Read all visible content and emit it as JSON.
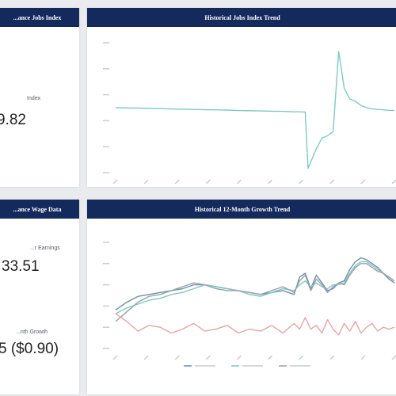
{
  "colors": {
    "header_bg": "#142a5c",
    "page_bg": "#e9ebee",
    "teal": "#7fc9c4",
    "blue": "#6f8faa",
    "gray": "#9aa0a8",
    "red": "#e3a6a6"
  },
  "panels": {
    "index_kpi": {
      "title": "...ance Jobs Index",
      "label": "Index",
      "value": "9.82"
    },
    "jobs_trend": {
      "title": "Historical Jobs Index Trend"
    },
    "wage_kpi": {
      "title": "...ance Wage Data",
      "earnings_label": "...r Earnings",
      "earnings_value": "33.51",
      "growth_label": "...nth Growth",
      "growth_value": "5 ($0.90)"
    },
    "growth_trend": {
      "title": "Historical 12-Month Growth Trend"
    }
  },
  "chart_data": [
    {
      "type": "line",
      "title": "Historical Jobs Index Trend",
      "x": [
        0,
        4,
        8,
        12,
        16,
        20,
        24,
        28,
        32,
        36,
        40,
        44,
        48,
        52,
        56,
        60,
        64,
        66,
        68,
        69,
        70,
        72,
        74,
        76,
        78,
        80,
        82,
        84,
        86,
        88,
        90,
        92,
        94,
        96,
        98,
        100
      ],
      "series": [
        {
          "values": [
            100,
            99.9,
            99.8,
            99.7,
            99.6,
            99.4,
            99.3,
            99.2,
            99.1,
            99.0,
            98.9,
            98.7,
            98.6,
            98.5,
            98.4,
            98.3,
            98.1,
            98.1,
            98.0,
            72,
            75,
            81,
            86,
            87,
            89,
            126,
            109,
            104,
            103,
            101,
            100,
            99.5,
            99.2,
            99.0,
            98.8,
            98.7
          ]
        }
      ],
      "ylim": [
        70,
        130
      ],
      "grid": false
    },
    {
      "type": "line",
      "title": "Historical 12-Month Growth Trend",
      "x": [
        0,
        4,
        8,
        12,
        16,
        20,
        24,
        28,
        32,
        36,
        40,
        44,
        48,
        52,
        56,
        60,
        64,
        66,
        68,
        70,
        72,
        74,
        76,
        78,
        80,
        82,
        84,
        86,
        88,
        90,
        92,
        94,
        96,
        98,
        100
      ],
      "series": [
        {
          "values": [
            2.5,
            2.9,
            3.2,
            3.3,
            3.4,
            3.5,
            3.6,
            3.8,
            3.8,
            3.7,
            3.6,
            3.5,
            3.4,
            3.3,
            3.4,
            3.5,
            3.3,
            4.2,
            4.4,
            3.6,
            4.3,
            3.9,
            3.5,
            3.6,
            3.9,
            4.0,
            4.6,
            5.0,
            5.2,
            5.1,
            4.9,
            4.7,
            4.4,
            4.1,
            3.9
          ]
        },
        {
          "values": [
            2.3,
            2.6,
            2.8,
            3.0,
            3.1,
            3.3,
            3.4,
            3.6,
            3.8,
            3.7,
            3.6,
            3.5,
            3.3,
            3.2,
            3.4,
            3.6,
            3.5,
            3.8,
            4.0,
            3.7,
            3.9,
            3.7,
            3.6,
            3.8,
            3.8,
            3.9,
            4.4,
            4.8,
            5.0,
            5.0,
            4.8,
            4.6,
            4.4,
            4.2,
            4.0
          ]
        },
        {
          "values": [
            1.9,
            2.4,
            2.9,
            3.2,
            3.3,
            3.5,
            3.7,
            3.9,
            3.8,
            3.6,
            3.5,
            3.5,
            3.4,
            3.3,
            3.5,
            3.7,
            3.4,
            4.0,
            4.3,
            3.5,
            4.1,
            3.8,
            3.4,
            3.7,
            3.9,
            3.8,
            4.3,
            4.7,
            4.9,
            4.9,
            4.7,
            4.5,
            4.4,
            4.2,
            4.0
          ]
        },
        {
          "values": [
            2.3,
            1.9,
            1.4,
            1.7,
            1.6,
            1.3,
            1.5,
            1.8,
            1.4,
            1.5,
            1.7,
            1.3,
            1.5,
            1.4,
            1.7,
            1.3,
            1.8,
            1.5,
            2.1,
            1.5,
            1.7,
            1.3,
            2.0,
            1.5,
            1.2,
            1.8,
            1.4,
            1.9,
            1.3,
            1.6,
            1.8,
            1.4,
            1.6,
            1.5,
            1.6
          ]
        }
      ],
      "ylim": [
        0.5,
        6.0
      ],
      "legend": "bottom",
      "grid": false
    }
  ]
}
